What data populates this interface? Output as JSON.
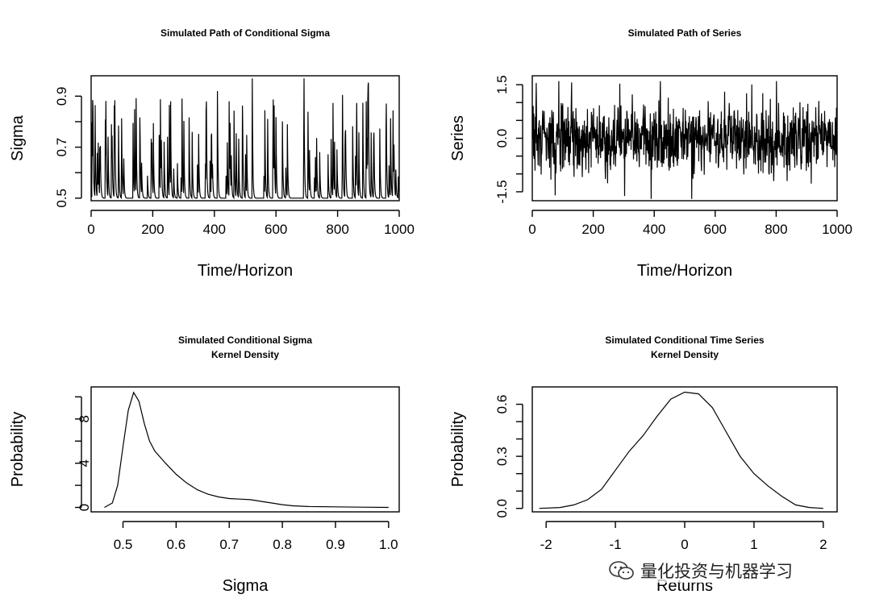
{
  "watermark": {
    "text": "量化投资与机器学习",
    "icon": "wechat-icon"
  },
  "chart_data": [
    {
      "id": "sigma-path",
      "type": "line",
      "title": [
        "Simulated Path of Conditional Sigma"
      ],
      "xlabel": "Time/Horizon",
      "ylabel": "Sigma",
      "xlim": [
        0,
        1000
      ],
      "ylim": [
        0.49,
        0.98
      ],
      "xticks": [
        0,
        200,
        400,
        600,
        800,
        1000
      ],
      "yticks": [
        0.5,
        0.6,
        0.7,
        0.8,
        0.9
      ],
      "ytick_labels": [
        "0.5",
        "",
        "0.7",
        "",
        "0.9"
      ],
      "generated": {
        "kind": "sigma",
        "n": 1000,
        "seed": 11
      },
      "x": [],
      "y": []
    },
    {
      "id": "series-path",
      "type": "line",
      "title": [
        "Simulated Path of Series"
      ],
      "xlabel": "Time/Horizon",
      "ylabel": "Series",
      "xlim": [
        0,
        1000
      ],
      "ylim": [
        -1.75,
        1.75
      ],
      "xticks": [
        0,
        200,
        400,
        600,
        800,
        1000
      ],
      "yticks": [
        -1.5,
        -1.0,
        -0.5,
        0.0,
        0.5,
        1.0,
        1.5
      ],
      "ytick_labels": [
        "-1.5",
        "",
        "",
        "0.0",
        "",
        "",
        "1.5"
      ],
      "generated": {
        "kind": "series",
        "n": 1000,
        "seed": 29
      },
      "x": [],
      "y": []
    },
    {
      "id": "sigma-density",
      "type": "line",
      "title": [
        "Simulated Conditional Sigma",
        "Kernel Density"
      ],
      "xlabel": "Sigma",
      "ylabel": "Probability",
      "xlim": [
        0.44,
        1.02
      ],
      "ylim": [
        -0.4,
        10.9
      ],
      "xticks": [
        0.5,
        0.6,
        0.7,
        0.8,
        0.9,
        1.0
      ],
      "xtick_labels": [
        "0.5",
        "0.6",
        "0.7",
        "0.8",
        "0.9",
        "1.0"
      ],
      "yticks": [
        0,
        2,
        4,
        6,
        8,
        10
      ],
      "ytick_labels": [
        "0",
        "",
        "4",
        "",
        "8",
        ""
      ],
      "x": [
        0.465,
        0.48,
        0.49,
        0.5,
        0.51,
        0.52,
        0.53,
        0.54,
        0.55,
        0.56,
        0.58,
        0.6,
        0.62,
        0.64,
        0.66,
        0.68,
        0.7,
        0.72,
        0.74,
        0.76,
        0.78,
        0.8,
        0.82,
        0.85,
        0.9,
        0.95,
        1.0
      ],
      "y": [
        0.0,
        0.4,
        2.0,
        5.5,
        8.8,
        10.4,
        9.6,
        7.6,
        6.0,
        5.1,
        4.0,
        3.0,
        2.2,
        1.6,
        1.2,
        0.95,
        0.8,
        0.75,
        0.7,
        0.55,
        0.4,
        0.25,
        0.15,
        0.08,
        0.05,
        0.02,
        0.0
      ]
    },
    {
      "id": "returns-density",
      "type": "line",
      "title": [
        "Simulated Conditional Time Series",
        "Kernel Density"
      ],
      "xlabel": "Returns",
      "ylabel": "Probability",
      "xlim": [
        -2.2,
        2.2
      ],
      "ylim": [
        -0.02,
        0.7
      ],
      "xticks": [
        -2,
        -1,
        0,
        1,
        2
      ],
      "xtick_labels": [
        "-2",
        "-1",
        "0",
        "1",
        "2"
      ],
      "yticks": [
        0.0,
        0.1,
        0.2,
        0.3,
        0.4,
        0.5,
        0.6
      ],
      "ytick_labels": [
        "0.0",
        "",
        "",
        "0.3",
        "",
        "",
        "0.6"
      ],
      "x": [
        -2.1,
        -1.8,
        -1.6,
        -1.4,
        -1.2,
        -1.0,
        -0.8,
        -0.6,
        -0.4,
        -0.2,
        0.0,
        0.2,
        0.4,
        0.6,
        0.8,
        1.0,
        1.2,
        1.4,
        1.6,
        1.8,
        2.0
      ],
      "y": [
        0.0,
        0.005,
        0.02,
        0.05,
        0.11,
        0.22,
        0.33,
        0.42,
        0.53,
        0.63,
        0.67,
        0.66,
        0.58,
        0.44,
        0.3,
        0.2,
        0.13,
        0.07,
        0.02,
        0.005,
        0.0
      ]
    }
  ]
}
